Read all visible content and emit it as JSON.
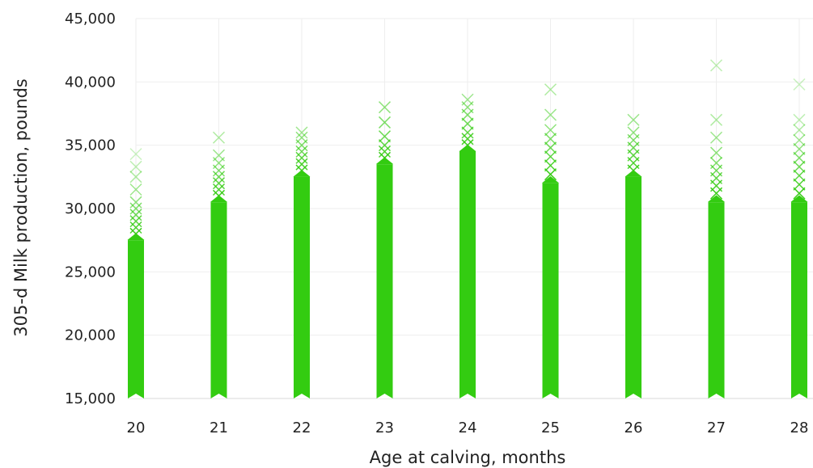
{
  "chart_data": {
    "type": "scatter",
    "xlabel": "Age at calving, months",
    "ylabel": "305-d Milk production, pounds",
    "xlim": [
      19.55,
      28.2
    ],
    "ylim": [
      15000,
      45000
    ],
    "x_ticks": [
      20,
      21,
      22,
      23,
      24,
      25,
      26,
      27,
      28
    ],
    "x_tick_labels": [
      "20",
      "21",
      "22",
      "23",
      "24",
      "25",
      "26",
      "27",
      "28"
    ],
    "y_ticks": [
      15000,
      20000,
      25000,
      30000,
      35000,
      40000,
      45000
    ],
    "y_tick_labels": [
      "15,000",
      "20,000",
      "25,000",
      "30,000",
      "35,000",
      "40,000",
      "45,000"
    ],
    "grid": true,
    "marker": "x",
    "color": "#33cc11",
    "series": [
      {
        "groups": [
          {
            "x": 20,
            "dense_min": 15000,
            "dense_max": 27500,
            "upper_points": [
              28000,
              28500,
              29000,
              29500,
              30000,
              30500,
              31500,
              32500,
              33300,
              34300
            ]
          },
          {
            "x": 21,
            "dense_min": 15000,
            "dense_max": 30500,
            "upper_points": [
              31000,
              31500,
              32000,
              32500,
              33000,
              33600,
              34200,
              35600
            ]
          },
          {
            "x": 22,
            "dense_min": 15000,
            "dense_max": 32500,
            "upper_points": [
              33000,
              33500,
              34000,
              34500,
              35000,
              35600,
              36000
            ]
          },
          {
            "x": 23,
            "dense_min": 15000,
            "dense_max": 33500,
            "upper_points": [
              34000,
              34500,
              35000,
              35700,
              36800,
              38000
            ]
          },
          {
            "x": 24,
            "dense_min": 15000,
            "dense_max": 34500,
            "upper_points": [
              35000,
              35500,
              36000,
              36700,
              37400,
              38000,
              38600
            ]
          },
          {
            "x": 25,
            "dense_min": 15000,
            "dense_max": 32000,
            "upper_points": [
              32700,
              33400,
              34100,
              34800,
              35500,
              36200,
              37400,
              39400
            ]
          },
          {
            "x": 26,
            "dense_min": 15000,
            "dense_max": 32500,
            "upper_points": [
              33000,
              33600,
              34200,
              34800,
              35400,
              36000,
              37000
            ]
          },
          {
            "x": 27,
            "dense_min": 15000,
            "dense_max": 30500,
            "upper_points": [
              31200,
              31800,
              32400,
              33000,
              33600,
              34400,
              35600,
              37000,
              41300
            ]
          },
          {
            "x": 28,
            "dense_min": 15000,
            "dense_max": 30500,
            "upper_points": [
              31200,
              31900,
              32600,
              33300,
              34000,
              34700,
              35400,
              36200,
              37000,
              39800
            ]
          }
        ]
      }
    ]
  }
}
